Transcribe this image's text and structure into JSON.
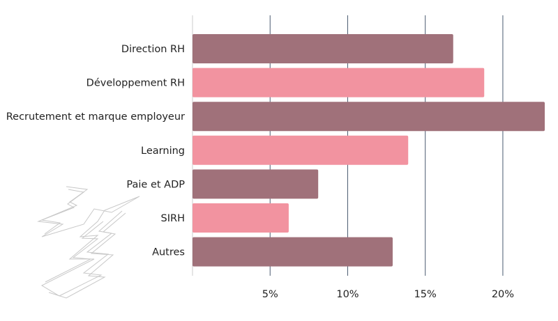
{
  "chart_data": {
    "type": "bar",
    "orientation": "horizontal",
    "categories": [
      "Direction RH",
      "Développement RH",
      "Recrutement et marque employeur",
      "Learning",
      "Paie et ADP",
      "SIRH",
      "Autres"
    ],
    "values": [
      16.8,
      18.8,
      22.7,
      13.9,
      8.1,
      6.2,
      12.9
    ],
    "bar_colors": [
      "#a0717a",
      "#f293a0",
      "#a0717a",
      "#f293a0",
      "#a0717a",
      "#f293a0",
      "#a0717a"
    ],
    "xticks": [
      5,
      10,
      15,
      20
    ],
    "xtick_labels": [
      "5%",
      "10%",
      "15%",
      "20%"
    ],
    "xlim": [
      0,
      22.7
    ],
    "title": "",
    "xlabel": "",
    "ylabel": "",
    "grid": true,
    "legend": "none"
  },
  "colors": {
    "bar_dark": "#a0717a",
    "bar_light": "#f293a0",
    "gridline": "#4a5a70"
  },
  "decoration": {
    "icon": "lightning-bolt-sketch-icon"
  }
}
